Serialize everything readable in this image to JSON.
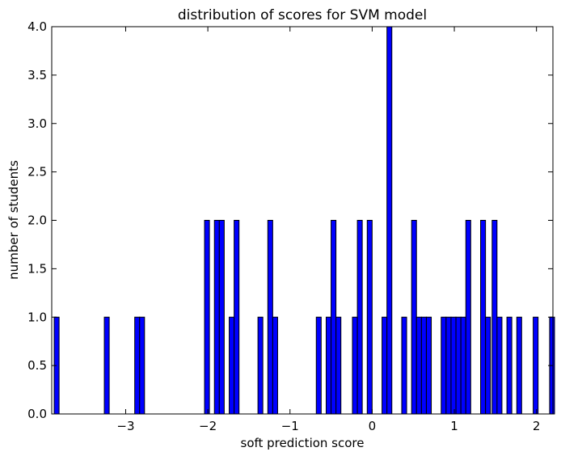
{
  "chart_data": {
    "type": "bar",
    "title": "distribution of scores for SVM model",
    "xlabel": "soft prediction score",
    "ylabel": "number of students",
    "xlim": [
      -3.9,
      2.2
    ],
    "ylim": [
      0,
      4.0
    ],
    "bin_width": 0.0595,
    "x_ticks": [
      -3,
      -2,
      -1,
      0,
      1,
      2
    ],
    "x_tick_labels": [
      "−3",
      "−2",
      "−1",
      "0",
      "1",
      "2"
    ],
    "y_ticks": [
      0,
      0.5,
      1.0,
      1.5,
      2.0,
      2.5,
      3.0,
      3.5,
      4.0
    ],
    "y_tick_labels": [
      "0.0",
      "0.5",
      "1.0",
      "1.5",
      "2.0",
      "2.5",
      "3.0",
      "3.5",
      "4.0"
    ],
    "grid": false,
    "bar_color": "#0000ff",
    "edge_color": "#000000",
    "bins": [
      {
        "x": -3.87,
        "count": 1
      },
      {
        "x": -3.26,
        "count": 1
      },
      {
        "x": -2.89,
        "count": 1
      },
      {
        "x": -2.83,
        "count": 1
      },
      {
        "x": -2.04,
        "count": 2
      },
      {
        "x": -1.92,
        "count": 2
      },
      {
        "x": -1.86,
        "count": 2
      },
      {
        "x": -1.74,
        "count": 1
      },
      {
        "x": -1.68,
        "count": 2
      },
      {
        "x": -1.39,
        "count": 1
      },
      {
        "x": -1.27,
        "count": 2
      },
      {
        "x": -1.21,
        "count": 1
      },
      {
        "x": -0.68,
        "count": 1
      },
      {
        "x": -0.56,
        "count": 1
      },
      {
        "x": -0.5,
        "count": 2
      },
      {
        "x": -0.44,
        "count": 1
      },
      {
        "x": -0.24,
        "count": 1
      },
      {
        "x": -0.18,
        "count": 2
      },
      {
        "x": -0.06,
        "count": 2
      },
      {
        "x": 0.12,
        "count": 1
      },
      {
        "x": 0.18,
        "count": 4
      },
      {
        "x": 0.36,
        "count": 1
      },
      {
        "x": 0.48,
        "count": 2
      },
      {
        "x": 0.54,
        "count": 1
      },
      {
        "x": 0.6,
        "count": 1
      },
      {
        "x": 0.66,
        "count": 1
      },
      {
        "x": 0.84,
        "count": 1
      },
      {
        "x": 0.9,
        "count": 1
      },
      {
        "x": 0.96,
        "count": 1
      },
      {
        "x": 1.02,
        "count": 1
      },
      {
        "x": 1.08,
        "count": 1
      },
      {
        "x": 1.14,
        "count": 2
      },
      {
        "x": 1.32,
        "count": 2
      },
      {
        "x": 1.38,
        "count": 1
      },
      {
        "x": 1.46,
        "count": 2
      },
      {
        "x": 1.52,
        "count": 1
      },
      {
        "x": 1.64,
        "count": 1
      },
      {
        "x": 1.76,
        "count": 1
      },
      {
        "x": 1.96,
        "count": 1
      },
      {
        "x": 2.16,
        "count": 1
      }
    ]
  }
}
